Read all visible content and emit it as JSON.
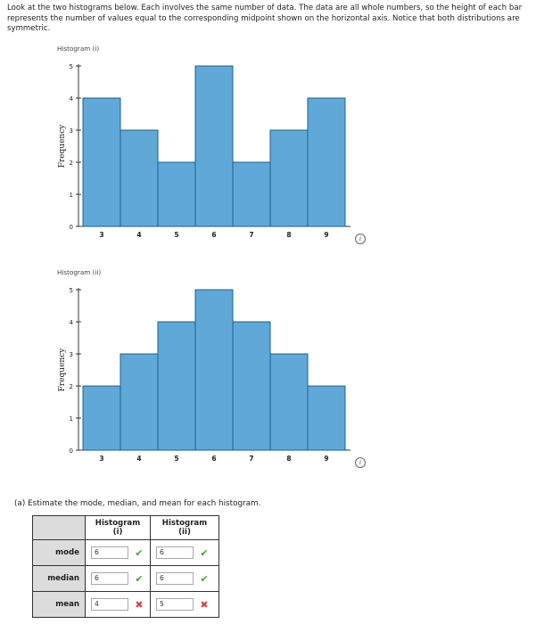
{
  "intro_text": "Look at the two histograms below. Each involves the same number of data. The data are all whole numbers, so the height of each bar represents the number of values equal to the corresponding midpoint shown on the horizontal axis. Notice that both distributions are symmetric.",
  "info_icon_glyph": "i",
  "colors": {
    "bar_fill": "#5fa8d8",
    "bar_stroke": "#1e5f93",
    "correct": "#3fa535",
    "incorrect": "#d64541"
  },
  "chart_data": [
    {
      "type": "bar",
      "title": "Histogram (i)",
      "xlabel": "",
      "ylabel": "Frequency",
      "categories": [
        "3",
        "4",
        "5",
        "6",
        "7",
        "8",
        "9"
      ],
      "values": [
        4,
        3,
        2,
        5,
        2,
        3,
        4
      ],
      "yticks": [
        "0",
        "1",
        "2",
        "3",
        "4",
        "5"
      ],
      "ylim": [
        0,
        5
      ],
      "grid": false
    },
    {
      "type": "bar",
      "title": "Histogram (ii)",
      "xlabel": "",
      "ylabel": "Frequency",
      "categories": [
        "3",
        "4",
        "5",
        "6",
        "7",
        "8",
        "9"
      ],
      "values": [
        2,
        3,
        4,
        5,
        4,
        3,
        2
      ],
      "yticks": [
        "0",
        "1",
        "2",
        "3",
        "4",
        "5"
      ],
      "ylim": [
        0,
        5
      ],
      "grid": false
    }
  ],
  "question": {
    "prompt": "(a)  Estimate the mode, median, and mean for each histogram.",
    "headers": [
      "Histogram (i)",
      "Histogram (ii)"
    ],
    "rows": [
      {
        "label": "mode",
        "answers": [
          {
            "value": "6",
            "mark": "✔"
          },
          {
            "value": "6",
            "mark": "✔"
          }
        ]
      },
      {
        "label": "median",
        "answers": [
          {
            "value": "6",
            "mark": "✔"
          },
          {
            "value": "6",
            "mark": "✔"
          }
        ]
      },
      {
        "label": "mean",
        "answers": [
          {
            "value": "4",
            "mark": "✖"
          },
          {
            "value": "5",
            "mark": "✖"
          }
        ]
      }
    ]
  }
}
